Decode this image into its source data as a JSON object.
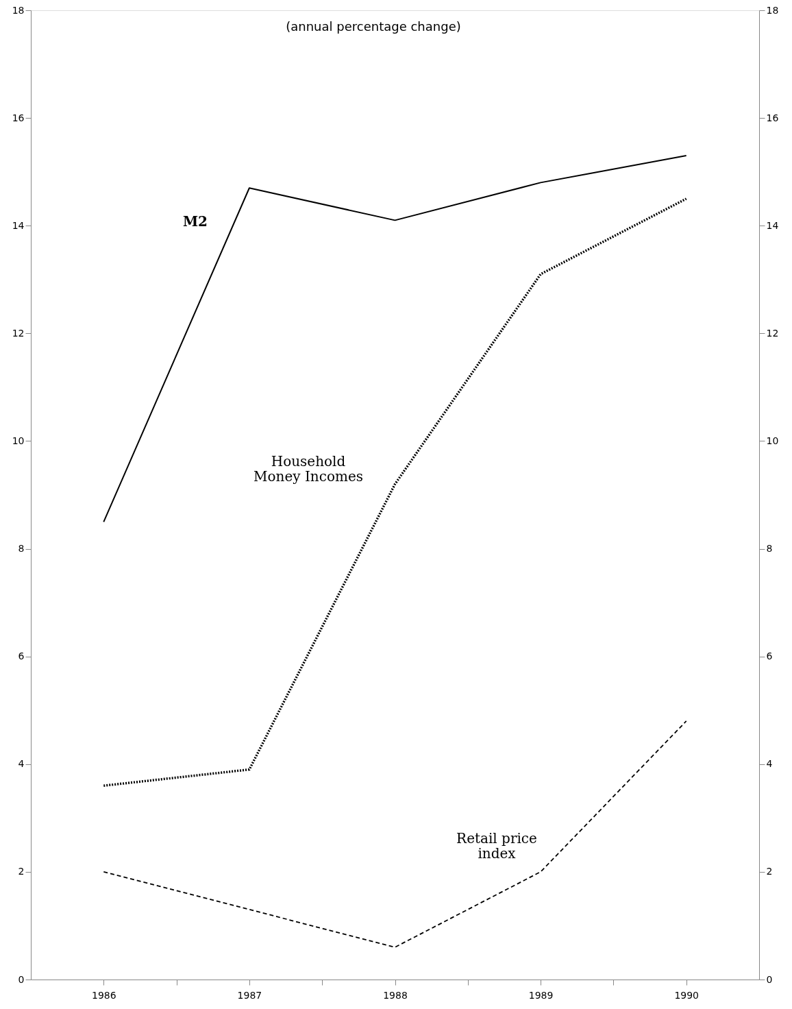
{
  "chart_data": {
    "type": "line",
    "title": "(annual percentage change)",
    "x": [
      1986,
      1987,
      1988,
      1989,
      1990
    ],
    "xlim": [
      1985.5,
      1990.5
    ],
    "xticks": [
      1986,
      {
        "value": 1986.5,
        "label": null
      },
      1987,
      {
        "value": 1987.5,
        "label": null
      },
      1988,
      {
        "value": 1988.5,
        "label": null
      },
      1989,
      {
        "value": 1989.5,
        "label": null
      },
      1990
    ],
    "ylim": [
      0,
      18
    ],
    "yticks": [
      0,
      2,
      4,
      6,
      8,
      10,
      12,
      14,
      16,
      18
    ],
    "y2lim": [
      0,
      18
    ],
    "y2ticks": [
      0,
      2,
      4,
      6,
      8,
      10,
      12,
      14,
      16,
      18
    ],
    "grid": false,
    "marker": "none",
    "series": [
      {
        "name": "M2",
        "color": "#000000",
        "line_style": "solid",
        "values": [
          8.5,
          14.7,
          14.1,
          14.8,
          15.3
        ]
      },
      {
        "name": "Household\nMoney Incomes",
        "color": "#000000",
        "line_style": "dotted",
        "values": [
          3.6,
          3.9,
          9.2,
          13.1,
          14.5
        ]
      },
      {
        "name": "Retail price\nindex",
        "color": "#000000",
        "line_style": "dashed",
        "values": [
          2.0,
          1.3,
          0.6,
          2.0,
          4.8
        ]
      }
    ]
  }
}
